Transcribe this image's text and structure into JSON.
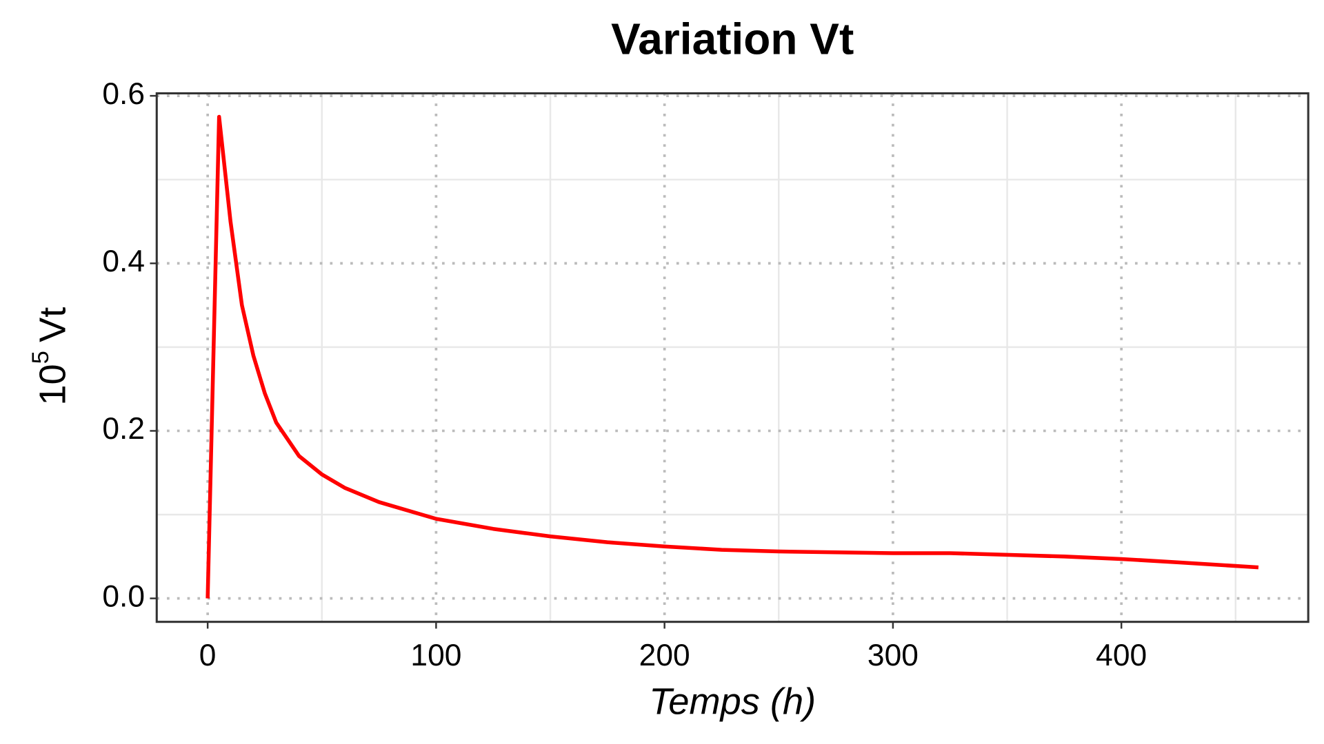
{
  "chart_data": {
    "type": "line",
    "title": "Variation Vt",
    "xlabel": "Temps (h)",
    "ylabel": {
      "base": "10",
      "superscript": "5",
      "text": "Vt"
    },
    "x": [
      0,
      5,
      10,
      15,
      20,
      25,
      30,
      40,
      50,
      60,
      75,
      100,
      125,
      150,
      175,
      200,
      225,
      250,
      275,
      300,
      325,
      350,
      375,
      400,
      425,
      460
    ],
    "series": [
      {
        "color": "#ff0000",
        "values": [
          0,
          0.575,
          0.45,
          0.35,
          0.29,
          0.245,
          0.21,
          0.17,
          0.148,
          0.132,
          0.115,
          0.095,
          0.083,
          0.074,
          0.067,
          0.062,
          0.058,
          0.056,
          0.055,
          0.054,
          0.054,
          0.052,
          0.05,
          0.047,
          0.043,
          0.037
        ]
      }
    ],
    "xlim": [
      -22.3,
      481.8
    ],
    "ylim": [
      -0.028,
      0.603
    ],
    "xticks": [
      0,
      100,
      200,
      300,
      400
    ],
    "yticks": [
      {
        "value": 0,
        "label": "0.0"
      },
      0.2,
      0.4,
      0.6
    ],
    "xminor": [
      50,
      150,
      250,
      350,
      450
    ],
    "yminor": [
      0.1,
      0.3,
      0.5
    ],
    "grid": true
  }
}
